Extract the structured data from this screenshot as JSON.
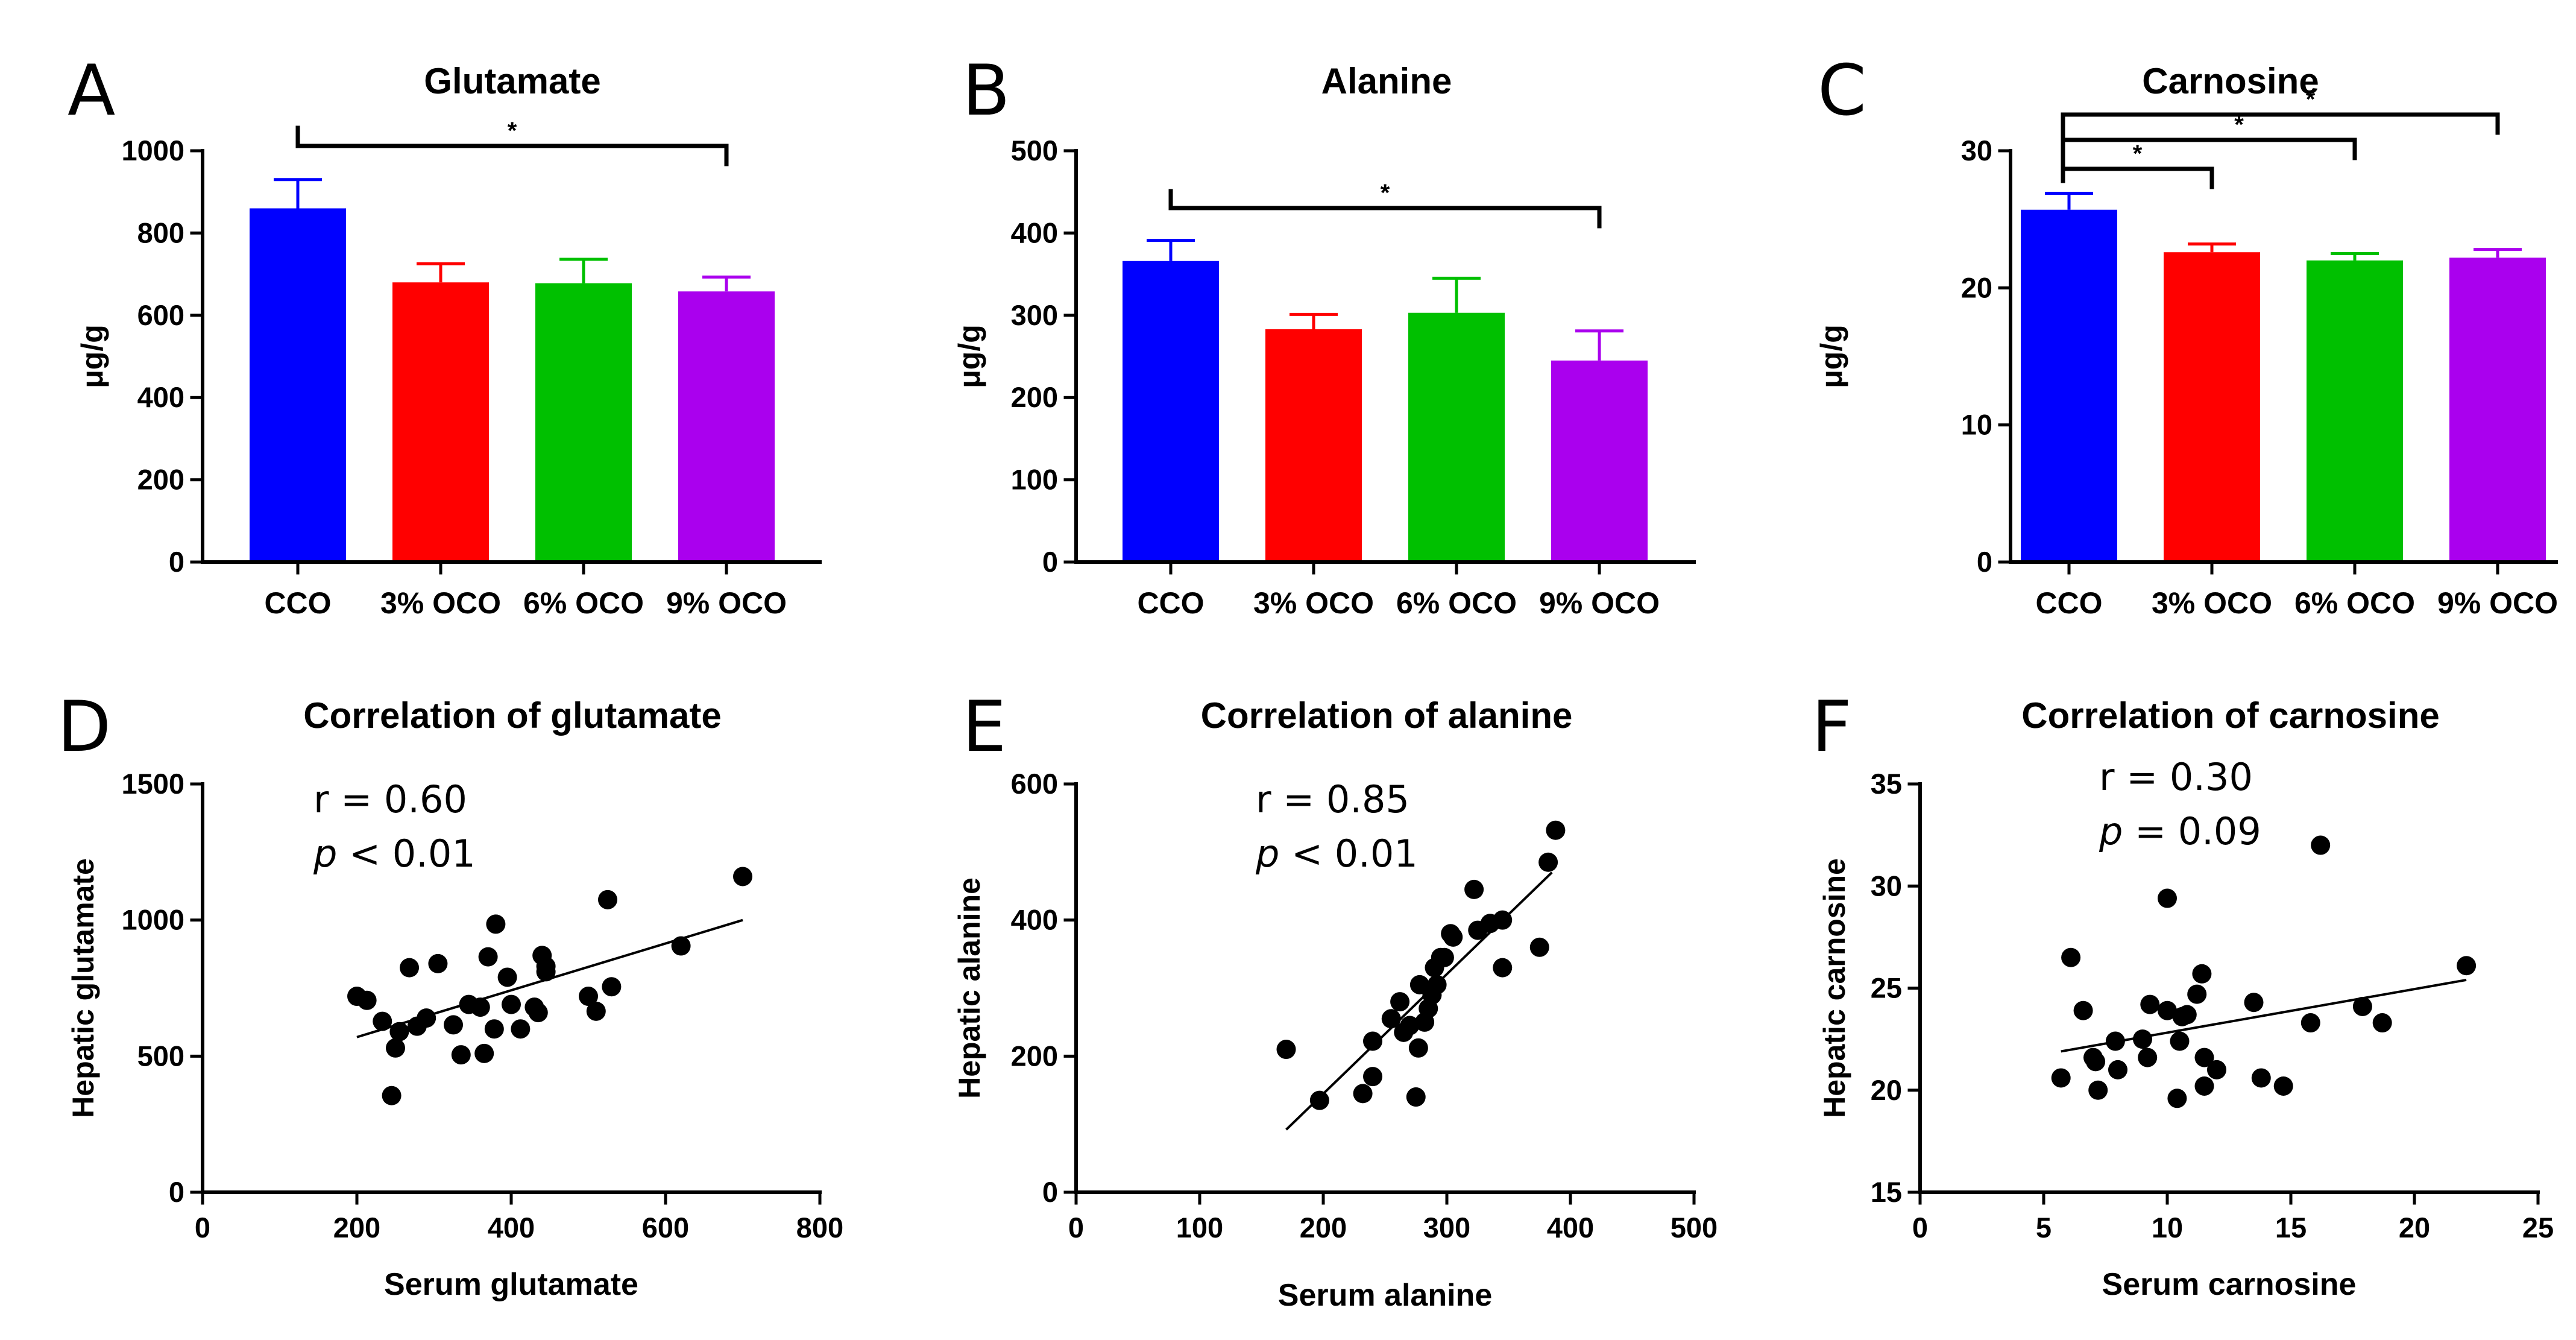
{
  "chart_data": [
    {
      "type": "bar",
      "panel_letter": "A",
      "title": "Glutamate",
      "ylabel": "μg/g",
      "ylim": [
        0,
        1000
      ],
      "yticks": [
        "0",
        "200",
        "400",
        "600",
        "800",
        "1000"
      ],
      "categories": [
        "CCO",
        "3% OCO",
        "6% OCO",
        "9% OCO"
      ],
      "colors": [
        "#0000ff",
        "#ff0000",
        "#00c000",
        "#aa00ee"
      ],
      "values": [
        860,
        680,
        678,
        658
      ],
      "errors": [
        70,
        45,
        58,
        35
      ],
      "significance": [
        {
          "from": 0,
          "to": 3,
          "label": "*"
        }
      ]
    },
    {
      "type": "bar",
      "panel_letter": "B",
      "title": "Alanine",
      "ylabel": "μg/g",
      "ylim": [
        0,
        500
      ],
      "yticks": [
        "0",
        "100",
        "200",
        "300",
        "400",
        "500"
      ],
      "categories": [
        "CCO",
        "3% OCO",
        "6% OCO",
        "9% OCO"
      ],
      "colors": [
        "#0000ff",
        "#ff0000",
        "#00c000",
        "#aa00ee"
      ],
      "values": [
        366,
        283,
        303,
        245
      ],
      "errors": [
        25,
        18,
        42,
        36
      ],
      "significance": [
        {
          "from": 0,
          "to": 3,
          "label": "*"
        }
      ]
    },
    {
      "type": "bar",
      "panel_letter": "C",
      "title": "Carnosine",
      "ylabel": "μg/g",
      "ylim": [
        0,
        30
      ],
      "yticks": [
        "0",
        "10",
        "20",
        "30"
      ],
      "categories": [
        "CCO",
        "3% OCO",
        "6% OCO",
        "9% OCO"
      ],
      "colors": [
        "#0000ff",
        "#ff0000",
        "#00c000",
        "#aa00ee"
      ],
      "values": [
        25.7,
        22.6,
        22.0,
        22.2
      ],
      "errors": [
        1.2,
        0.6,
        0.5,
        0.6
      ],
      "significance": [
        {
          "from": 0,
          "to": 1,
          "label": "*"
        },
        {
          "from": 0,
          "to": 2,
          "label": "*"
        },
        {
          "from": 0,
          "to": 3,
          "label": "*"
        }
      ]
    },
    {
      "type": "scatter",
      "panel_letter": "D",
      "title": "Correlation of glutamate",
      "xlabel": "Serum glutamate",
      "ylabel": "Hepatic glutamate",
      "xlim": [
        0,
        800
      ],
      "ylim": [
        0,
        1500
      ],
      "xticks": [
        "0",
        "200",
        "400",
        "600",
        "800"
      ],
      "yticks": [
        "0",
        "500",
        "1000",
        "1500"
      ],
      "stat_r": "r = 0.60",
      "stat_p_symbol": "p",
      "stat_p_rest": " < 0.01",
      "fit": [
        [
          200,
          570
        ],
        [
          700,
          1000
        ]
      ],
      "points": [
        [
          200,
          720
        ],
        [
          213,
          705
        ],
        [
          233,
          628
        ],
        [
          245,
          355
        ],
        [
          250,
          530
        ],
        [
          255,
          590
        ],
        [
          268,
          825
        ],
        [
          278,
          610
        ],
        [
          290,
          640
        ],
        [
          305,
          840
        ],
        [
          325,
          615
        ],
        [
          335,
          505
        ],
        [
          345,
          690
        ],
        [
          360,
          680
        ],
        [
          365,
          510
        ],
        [
          370,
          865
        ],
        [
          378,
          600
        ],
        [
          380,
          985
        ],
        [
          395,
          790
        ],
        [
          400,
          690
        ],
        [
          412,
          600
        ],
        [
          430,
          680
        ],
        [
          435,
          660
        ],
        [
          440,
          870
        ],
        [
          445,
          810
        ],
        [
          445,
          830
        ],
        [
          500,
          720
        ],
        [
          510,
          665
        ],
        [
          525,
          1075
        ],
        [
          530,
          755
        ],
        [
          620,
          905
        ],
        [
          700,
          1160
        ]
      ]
    },
    {
      "type": "scatter",
      "panel_letter": "E",
      "title": "Correlation of alanine",
      "xlabel": "Serum alanine",
      "ylabel": "Hepatic alanine",
      "xlim": [
        0,
        500
      ],
      "ylim": [
        0,
        600
      ],
      "xticks": [
        "0",
        "100",
        "200",
        "300",
        "400",
        "500"
      ],
      "yticks": [
        "0",
        "200",
        "400",
        "600"
      ],
      "stat_r": "r = 0.85",
      "stat_p_symbol": "p",
      "stat_p_rest": " < 0.01",
      "fit": [
        [
          170,
          92
        ],
        [
          385,
          470
        ]
      ],
      "points": [
        [
          170,
          210
        ],
        [
          197,
          135
        ],
        [
          232,
          145
        ],
        [
          240,
          222
        ],
        [
          240,
          170
        ],
        [
          255,
          255
        ],
        [
          262,
          280
        ],
        [
          265,
          235
        ],
        [
          270,
          245
        ],
        [
          275,
          140
        ],
        [
          277,
          212
        ],
        [
          278,
          305
        ],
        [
          282,
          250
        ],
        [
          285,
          270
        ],
        [
          288,
          290
        ],
        [
          290,
          330
        ],
        [
          292,
          305
        ],
        [
          295,
          345
        ],
        [
          298,
          345
        ],
        [
          303,
          380
        ],
        [
          305,
          375
        ],
        [
          322,
          445
        ],
        [
          325,
          385
        ],
        [
          335,
          395
        ],
        [
          345,
          330
        ],
        [
          345,
          400
        ],
        [
          375,
          360
        ],
        [
          382,
          485
        ],
        [
          388,
          532
        ]
      ]
    },
    {
      "type": "scatter",
      "panel_letter": "F",
      "title": "Correlation of carnosine",
      "xlabel": "Serum carnosine",
      "ylabel": "Hepatic carnosine",
      "xlim": [
        0,
        25
      ],
      "ylim": [
        15,
        35
      ],
      "xticks": [
        "0",
        "5",
        "10",
        "15",
        "20",
        "25"
      ],
      "yticks": [
        "15",
        "20",
        "25",
        "30",
        "35"
      ],
      "stat_r": "r = 0.30",
      "stat_p_symbol": "p",
      "stat_p_rest": " = 0.09",
      "fit": [
        [
          5.7,
          21.9
        ],
        [
          22.1,
          25.4
        ]
      ],
      "points": [
        [
          5.7,
          20.6
        ],
        [
          6.1,
          26.5
        ],
        [
          6.6,
          23.9
        ],
        [
          7.0,
          21.6
        ],
        [
          7.1,
          21.4
        ],
        [
          7.2,
          20.0
        ],
        [
          7.9,
          22.4
        ],
        [
          8.0,
          21.0
        ],
        [
          9.0,
          22.5
        ],
        [
          9.2,
          21.6
        ],
        [
          9.3,
          24.2
        ],
        [
          10.0,
          29.4
        ],
        [
          10.0,
          23.9
        ],
        [
          10.4,
          19.6
        ],
        [
          10.5,
          22.4
        ],
        [
          10.6,
          23.6
        ],
        [
          10.8,
          23.7
        ],
        [
          11.2,
          24.7
        ],
        [
          11.4,
          25.7
        ],
        [
          11.5,
          21.6
        ],
        [
          11.5,
          20.2
        ],
        [
          12.0,
          21.0
        ],
        [
          13.5,
          24.3
        ],
        [
          13.8,
          20.6
        ],
        [
          14.7,
          20.2
        ],
        [
          15.8,
          23.3
        ],
        [
          16.2,
          32.0
        ],
        [
          17.9,
          24.1
        ],
        [
          18.7,
          23.3
        ],
        [
          22.1,
          26.1
        ]
      ]
    }
  ]
}
